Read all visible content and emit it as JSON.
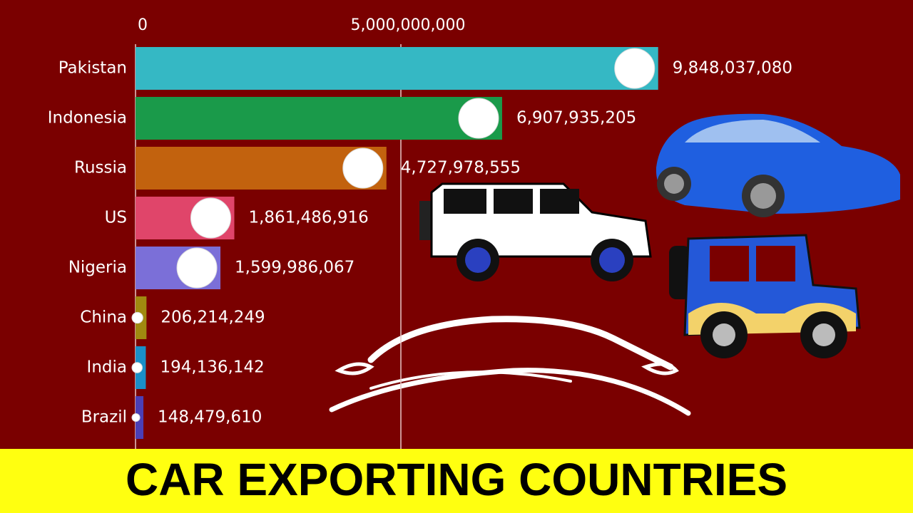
{
  "chart_data": {
    "type": "bar",
    "orientation": "horizontal",
    "title": "CAR EXPORTING COUNTRIES",
    "categories": [
      "Pakistan",
      "Indonesia",
      "Russia",
      "US",
      "Nigeria",
      "China",
      "India",
      "Brazil"
    ],
    "values": [
      9848037080,
      6907935205,
      4727978555,
      1861486916,
      1599986067,
      206214249,
      194136142,
      148479610
    ],
    "value_labels": [
      "9,848,037,080",
      "6,907,935,205",
      "4,727,978,555",
      "1,861,486,916",
      "1,599,986,067",
      "206,214,249",
      "194,136,142",
      "148,479,610"
    ],
    "colors": [
      "#35b8c4",
      "#1a9a4a",
      "#c2620e",
      "#e0456a",
      "#7b6fd8",
      "#a08a10",
      "#1a8fc8",
      "#4b3fb5"
    ],
    "xlim": [
      0,
      14650000000
    ],
    "xticks": [
      0,
      {
        "value": 5000000000,
        "label": "5,000,000,000"
      }
    ],
    "grid": true
  }
}
